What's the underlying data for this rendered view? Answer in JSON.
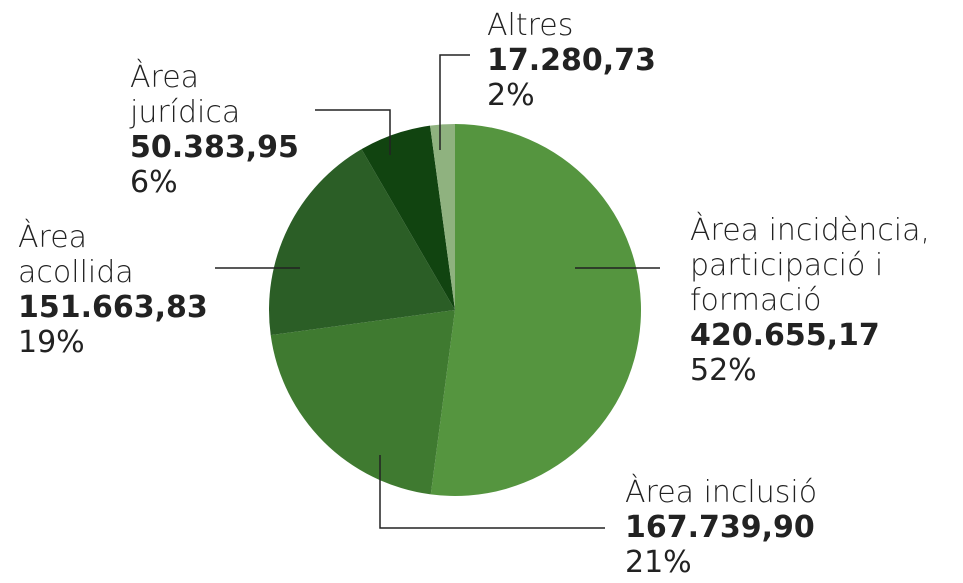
{
  "chart_data": {
    "type": "pie",
    "categories": [
      "Àrea incidència, participació i formació",
      "Àrea inclusió",
      "Àrea acollida",
      "Àrea jurídica",
      "Altres"
    ],
    "values": [
      420655.17,
      167739.9,
      151663.83,
      50383.95,
      17280.73
    ],
    "value_labels": [
      "420.655,17",
      "167.739,90",
      "151.663,83",
      "50.383,95",
      "17.280,73"
    ],
    "percent_labels": [
      "52%",
      "21%",
      "19%",
      "6%",
      "2%"
    ],
    "colors": [
      "#55953f",
      "#3f7a30",
      "#2b5e26",
      "#114410",
      "#8fb27f"
    ]
  }
}
